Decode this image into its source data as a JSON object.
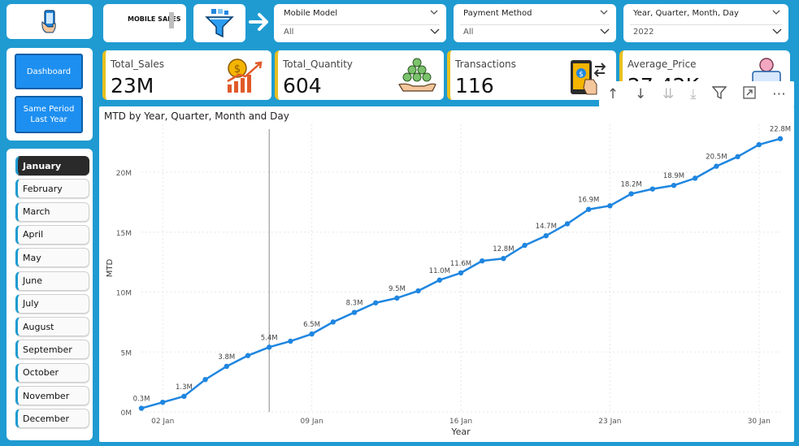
{
  "header": {
    "app_title": "MOBILE SALES",
    "slicers": [
      {
        "label": "Mobile Model",
        "value": "All"
      },
      {
        "label": "Payment Method",
        "value": "All"
      },
      {
        "label": "Year, Quarter, Month, Day",
        "value": "2022"
      }
    ]
  },
  "kpis": [
    {
      "label": "Total_Sales",
      "value": "23M",
      "icon": "coin-growth-icon"
    },
    {
      "label": "Total_Quantity",
      "value": "604",
      "icon": "coins-hand-icon"
    },
    {
      "label": "Transactions",
      "value": "116",
      "icon": "phone-payment-icon"
    },
    {
      "label": "Average_Price",
      "value": "27,42K",
      "icon": "price-tag-icon"
    }
  ],
  "nav": {
    "dashboard": "Dashboard",
    "same_period": "Same Period Last Year"
  },
  "months": [
    "January",
    "February",
    "March",
    "April",
    "May",
    "June",
    "July",
    "August",
    "September",
    "October",
    "November",
    "December"
  ],
  "selected_month": "January",
  "chart": {
    "title": "MTD by Year, Quarter, Month and Day",
    "xlabel": "Year",
    "ylabel": "MTD"
  },
  "chart_data": {
    "type": "line",
    "title": "MTD by Year, Quarter, Month and Day",
    "xlabel": "Year",
    "ylabel": "MTD",
    "x": [
      1,
      2,
      3,
      4,
      5,
      6,
      7,
      8,
      9,
      10,
      11,
      12,
      13,
      14,
      15,
      16,
      17,
      18,
      19,
      20,
      21,
      22,
      23,
      24,
      25,
      26,
      27,
      28,
      29,
      30,
      31
    ],
    "series": [
      {
        "values": [
          0.3,
          0.8,
          1.3,
          2.7,
          3.8,
          4.7,
          5.4,
          5.9,
          6.5,
          7.5,
          8.3,
          9.1,
          9.5,
          10.1,
          11.0,
          11.6,
          12.6,
          12.8,
          13.9,
          14.7,
          15.7,
          16.9,
          17.2,
          18.2,
          18.6,
          18.9,
          19.5,
          20.5,
          21.3,
          22.3,
          22.8
        ]
      }
    ],
    "data_labels": {
      "1": "0.3M",
      "3": "1.3M",
      "5": "3.8M",
      "7": "5.4M",
      "9": "6.5M",
      "11": "8.3M",
      "13": "9.5M",
      "15": "11.0M",
      "16": "11.6M",
      "18": "12.8M",
      "20": "14.7M",
      "22": "16.9M",
      "24": "18.2M",
      "26": "18.9M",
      "28": "20.5M",
      "31": "22.8M"
    },
    "yticks": [
      "0M",
      "5M",
      "10M",
      "15M",
      "20M"
    ],
    "ytick_values": [
      0,
      5,
      10,
      15,
      20
    ],
    "xticks": [
      {
        "x": 2,
        "label": "02 Jan"
      },
      {
        "x": 9,
        "label": "09 Jan"
      },
      {
        "x": 16,
        "label": "16 Jan"
      },
      {
        "x": 23,
        "label": "23 Jan"
      },
      {
        "x": 30,
        "label": "30 Jan"
      }
    ],
    "ylim": [
      0,
      24
    ],
    "xlim": [
      1,
      31
    ],
    "reference_line_x": 7,
    "line_color": "#1f86e0",
    "grid": true
  },
  "colors": {
    "background": "#1f9bd1",
    "accent": "#e8c01f",
    "nav_button": "#1d8ff0"
  }
}
